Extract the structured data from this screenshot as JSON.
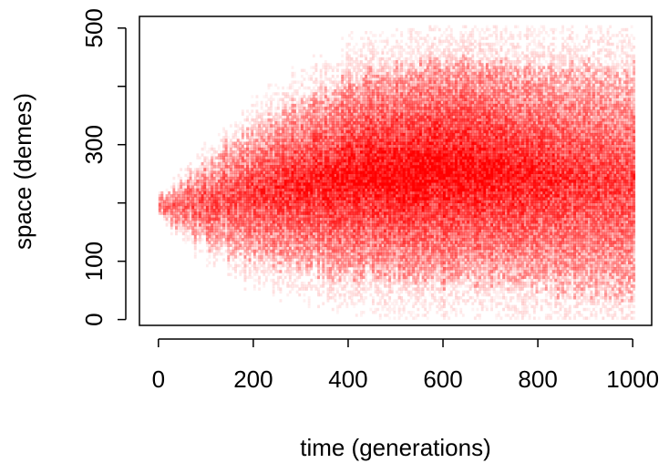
{
  "chart_data": {
    "type": "heatmap",
    "title": "",
    "xlabel": "time (generations)",
    "ylabel": "space (demes)",
    "xlim": [
      -40,
      1040
    ],
    "ylim": [
      -10,
      520
    ],
    "x_ticks": [
      0,
      200,
      400,
      600,
      800,
      1000
    ],
    "x_tick_labels": [
      "0",
      "200",
      "400",
      "600",
      "800",
      "1000"
    ],
    "y_ticks": [
      0,
      100,
      200,
      300,
      400,
      500
    ],
    "y_tick_labels": [
      "0",
      "100",
      "",
      "300",
      "",
      "500"
    ],
    "grid": false,
    "legend": "none",
    "color_scale": {
      "low": "#ffffff",
      "high": "#ff0000"
    },
    "density_profile": {
      "description_keys": [
        "x",
        "center",
        "spread",
        "intensity"
      ],
      "points": [
        {
          "x": 0,
          "center": 190,
          "spread": 18,
          "intensity": 0.55
        },
        {
          "x": 100,
          "center": 200,
          "spread": 80,
          "intensity": 0.65
        },
        {
          "x": 200,
          "center": 210,
          "spread": 130,
          "intensity": 0.75
        },
        {
          "x": 300,
          "center": 230,
          "spread": 160,
          "intensity": 0.85
        },
        {
          "x": 400,
          "center": 240,
          "spread": 190,
          "intensity": 0.95
        },
        {
          "x": 500,
          "center": 250,
          "spread": 200,
          "intensity": 1.0
        },
        {
          "x": 600,
          "center": 250,
          "spread": 210,
          "intensity": 1.0
        },
        {
          "x": 700,
          "center": 250,
          "spread": 210,
          "intensity": 0.95
        },
        {
          "x": 800,
          "center": 240,
          "spread": 210,
          "intensity": 0.85
        },
        {
          "x": 900,
          "center": 240,
          "spread": 220,
          "intensity": 0.75
        },
        {
          "x": 1000,
          "center": 230,
          "spread": 220,
          "intensity": 0.7
        }
      ]
    }
  }
}
